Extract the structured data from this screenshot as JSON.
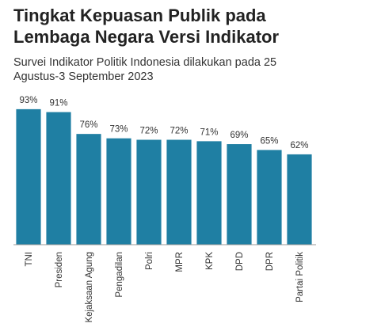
{
  "chart_data": {
    "type": "bar",
    "title": "Tingkat Kepuasan Publik pada Lembaga Negara Versi Indikator",
    "subtitle": "Survei Indikator Politik Indonesia dilakukan pada 25 Agustus-3 September 2023",
    "categories": [
      "TNI",
      "Presiden",
      "Kejaksaan Agung",
      "Pengadilan",
      "Polri",
      "MPR",
      "KPK",
      "DPD",
      "DPR",
      "Partai Politik"
    ],
    "values": [
      93,
      91,
      76,
      73,
      72,
      72,
      71,
      69,
      65,
      62
    ],
    "value_labels": [
      "93%",
      "91%",
      "76%",
      "73%",
      "72%",
      "72%",
      "71%",
      "69%",
      "65%",
      "62%"
    ],
    "color": "#1f7fa3",
    "ylim": [
      0,
      100
    ]
  }
}
